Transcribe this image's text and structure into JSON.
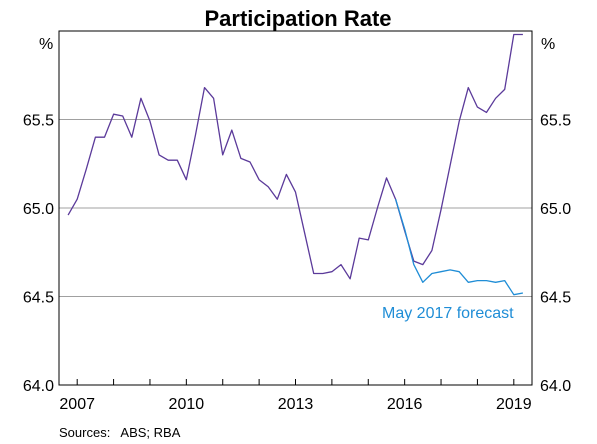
{
  "chart_data": {
    "type": "line",
    "title": "Participation Rate",
    "unit_left": "%",
    "unit_right": "%",
    "ylim": [
      64.0,
      66.0
    ],
    "yticks": [
      64.0,
      64.5,
      65.0,
      65.5
    ],
    "ytick_labels": [
      "64.0",
      "64.5",
      "65.0",
      "65.5"
    ],
    "xlim": [
      2006.5,
      2019.5
    ],
    "xticks": [
      2007,
      2010,
      2013,
      2016,
      2019
    ],
    "xtick_labels": [
      "2007",
      "2010",
      "2013",
      "2016",
      "2019"
    ],
    "grid": "horizontal",
    "colors": {
      "actual": "#5b3a9a",
      "forecast": "#1f8dd6",
      "grid": "#a0a0a0",
      "axis": "#000000"
    },
    "series": [
      {
        "key": "actual",
        "x": [
          2006.75,
          2007.0,
          2007.25,
          2007.5,
          2007.75,
          2008.0,
          2008.25,
          2008.5,
          2008.75,
          2009.0,
          2009.25,
          2009.5,
          2009.75,
          2010.0,
          2010.25,
          2010.5,
          2010.75,
          2011.0,
          2011.25,
          2011.5,
          2011.75,
          2012.0,
          2012.25,
          2012.5,
          2012.75,
          2013.0,
          2013.25,
          2013.5,
          2013.75,
          2014.0,
          2014.25,
          2014.5,
          2014.75,
          2015.0,
          2015.25,
          2015.5,
          2015.75,
          2016.0,
          2016.25,
          2016.5,
          2016.75,
          2017.0,
          2017.25,
          2017.5,
          2017.75,
          2018.0,
          2018.25,
          2018.5,
          2018.75,
          2019.0,
          2019.25
        ],
        "values": [
          64.96,
          65.05,
          65.22,
          65.4,
          65.4,
          65.53,
          65.52,
          65.4,
          65.62,
          65.49,
          65.3,
          65.27,
          65.27,
          65.16,
          65.41,
          65.68,
          65.62,
          65.3,
          65.44,
          65.28,
          65.26,
          65.16,
          65.12,
          65.05,
          65.19,
          65.09,
          64.86,
          64.63,
          64.63,
          64.64,
          64.68,
          64.6,
          64.83,
          64.82,
          65.0,
          65.17,
          65.05,
          64.87,
          64.7,
          64.68,
          64.76,
          64.99,
          65.24,
          65.49,
          65.68,
          65.57,
          65.54,
          65.62,
          65.67,
          65.98,
          65.98
        ]
      },
      {
        "key": "forecast",
        "name": "May 2017 forecast",
        "x": [
          2015.75,
          2016.0,
          2016.25,
          2016.5,
          2016.75,
          2017.0,
          2017.25,
          2017.5,
          2017.75,
          2018.0,
          2018.25,
          2018.5,
          2018.75,
          2019.0,
          2019.25
        ],
        "values": [
          65.05,
          64.88,
          64.68,
          64.58,
          64.63,
          64.64,
          64.65,
          64.64,
          64.58,
          64.59,
          64.59,
          64.58,
          64.59,
          64.51,
          64.52
        ]
      }
    ],
    "annotation": "May 2017 forecast",
    "source": "Sources:   ABS; RBA"
  }
}
